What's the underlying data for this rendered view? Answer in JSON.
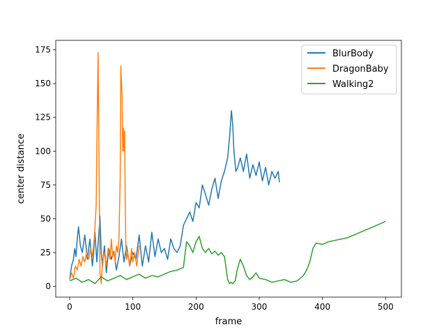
{
  "chart_data": {
    "type": "line",
    "xlabel": "frame",
    "ylabel": "center distance",
    "xlim": [
      -22,
      525
    ],
    "ylim": [
      -8,
      182
    ],
    "xticks": [
      0,
      100,
      200,
      300,
      400,
      500
    ],
    "yticks": [
      0,
      25,
      50,
      75,
      100,
      125,
      150,
      175
    ],
    "grid": false,
    "legend_position": "top-right",
    "series": [
      {
        "name": "BlurBody",
        "color": "#1f77b4",
        "x": [
          0,
          3,
          6,
          8,
          10,
          12,
          14,
          17,
          20,
          24,
          28,
          32,
          36,
          38,
          40,
          43,
          46,
          48,
          50,
          52,
          55,
          58,
          62,
          66,
          70,
          74,
          78,
          82,
          86,
          90,
          95,
          100,
          105,
          110,
          115,
          120,
          125,
          130,
          135,
          140,
          145,
          150,
          155,
          160,
          165,
          170,
          175,
          180,
          185,
          190,
          195,
          200,
          205,
          210,
          215,
          220,
          225,
          230,
          235,
          240,
          245,
          250,
          253,
          256,
          258,
          260,
          263,
          266,
          270,
          275,
          280,
          285,
          290,
          295,
          300,
          305,
          310,
          315,
          320,
          325,
          330,
          332
        ],
        "values": [
          5,
          15,
          20,
          28,
          22,
          35,
          44,
          30,
          25,
          38,
          20,
          35,
          15,
          25,
          40,
          18,
          38,
          52,
          25,
          15,
          30,
          10,
          28,
          20,
          26,
          12,
          22,
          35,
          18,
          30,
          15,
          25,
          20,
          38,
          15,
          30,
          18,
          40,
          22,
          35,
          25,
          28,
          20,
          35,
          28,
          25,
          30,
          45,
          50,
          55,
          48,
          62,
          58,
          75,
          68,
          60,
          72,
          80,
          65,
          78,
          85,
          95,
          110,
          130,
          120,
          100,
          85,
          88,
          95,
          85,
          98,
          80,
          90,
          82,
          92,
          78,
          88,
          75,
          85,
          80,
          85,
          77
        ]
      },
      {
        "name": "DragonBaby",
        "color": "#ff7f0e",
        "x": [
          0,
          3,
          6,
          9,
          12,
          15,
          18,
          21,
          24,
          27,
          30,
          33,
          36,
          39,
          42,
          44,
          45,
          46,
          48,
          50,
          52,
          55,
          58,
          61,
          64,
          66,
          68,
          70,
          72,
          74,
          76,
          78,
          80,
          81,
          83,
          84,
          85,
          86,
          87,
          88,
          89,
          90,
          92,
          95,
          98,
          100,
          103,
          106,
          110
        ],
        "values": [
          5,
          10,
          6,
          15,
          12,
          20,
          15,
          22,
          18,
          25,
          20,
          28,
          22,
          35,
          60,
          140,
          173,
          120,
          10,
          2,
          18,
          25,
          15,
          28,
          20,
          35,
          22,
          25,
          18,
          30,
          25,
          35,
          80,
          163,
          140,
          100,
          117,
          100,
          115,
          60,
          30,
          20,
          25,
          15,
          28,
          18,
          25,
          15,
          30
        ]
      },
      {
        "name": "Walking2",
        "color": "#2ca02c",
        "x": [
          0,
          10,
          20,
          30,
          40,
          50,
          60,
          70,
          80,
          90,
          100,
          110,
          120,
          130,
          140,
          150,
          160,
          170,
          180,
          185,
          190,
          195,
          200,
          205,
          210,
          215,
          220,
          225,
          230,
          235,
          240,
          245,
          250,
          253,
          255,
          258,
          262,
          265,
          268,
          270,
          275,
          280,
          285,
          290,
          295,
          300,
          310,
          320,
          330,
          340,
          350,
          360,
          370,
          375,
          380,
          385,
          390,
          400,
          410,
          420,
          430,
          440,
          450,
          460,
          470,
          480,
          490,
          500
        ],
        "values": [
          4,
          6,
          3,
          5,
          2,
          7,
          4,
          6,
          8,
          5,
          7,
          9,
          6,
          8,
          7,
          9,
          11,
          12,
          14,
          33,
          30,
          25,
          33,
          37,
          28,
          25,
          28,
          24,
          26,
          23,
          25,
          22,
          5,
          2,
          3,
          2,
          4,
          12,
          17,
          20,
          15,
          8,
          5,
          7,
          10,
          6,
          5,
          3,
          4,
          5,
          3,
          4,
          8,
          12,
          18,
          28,
          32,
          31,
          33,
          34,
          35,
          36,
          38,
          40,
          42,
          44,
          46,
          48
        ]
      }
    ]
  }
}
